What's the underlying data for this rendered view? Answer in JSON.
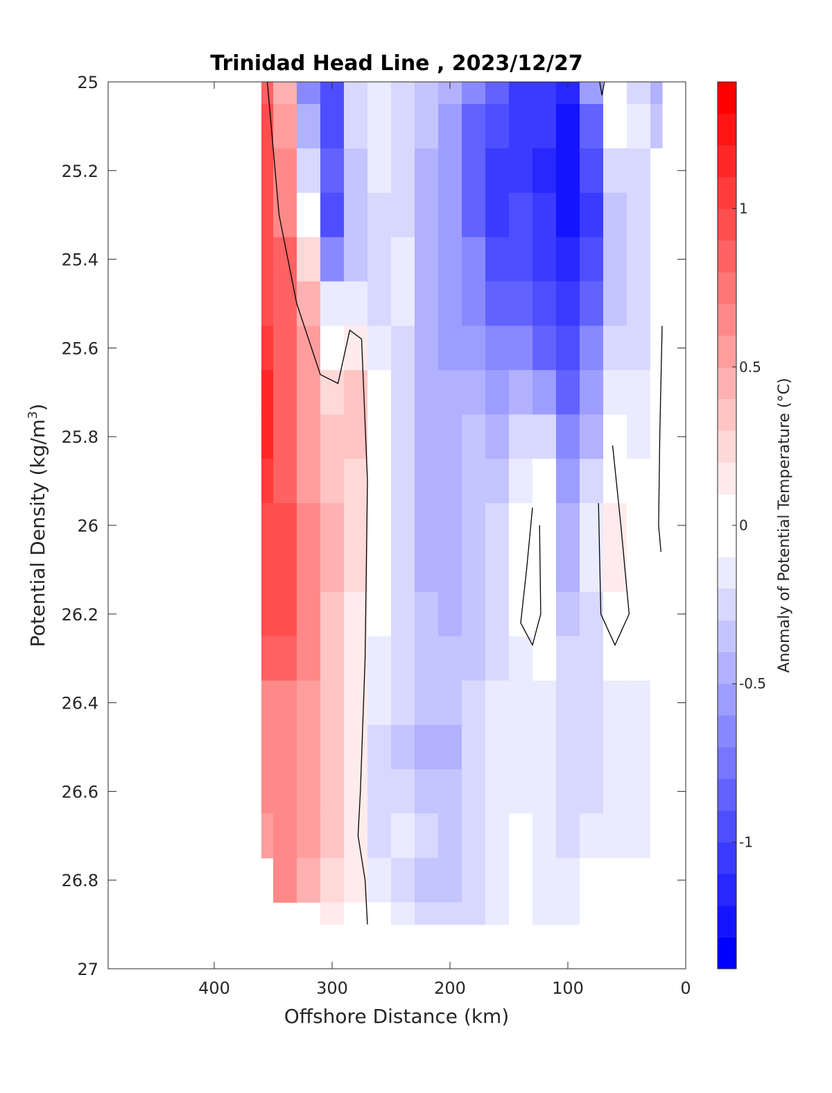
{
  "chart_data": {
    "type": "heatmap",
    "title": "Trinidad Head Line , 2023/12/27",
    "xlabel": "Offshore Distance (km)",
    "ylabel_prefix": "Potential Density (kg/m",
    "ylabel_exponent": "3",
    "ylabel_suffix": ")",
    "colorbar_label": "Anomaly of Potential Temperature (°C)",
    "xlim": [
      490,
      0
    ],
    "ylim": [
      25,
      27
    ],
    "y_reversed": true,
    "grid": false,
    "xticks": [
      400,
      300,
      200,
      100,
      0
    ],
    "xtick_labels": [
      "400",
      "300",
      "200",
      "100",
      "0"
    ],
    "yticks": [
      25,
      25.2,
      25.4,
      25.6,
      25.8,
      26,
      26.2,
      26.4,
      26.6,
      26.8,
      27
    ],
    "ytick_labels": [
      "25",
      "25.2",
      "25.4",
      "25.6",
      "25.8",
      "26",
      "26.2",
      "26.4",
      "26.6",
      "26.8",
      "27"
    ],
    "clim": [
      -1.4,
      1.4
    ],
    "colorbar_levels": 28,
    "colorbar_ticks": [
      1,
      0.5,
      0,
      -0.5,
      -1
    ],
    "colorbar_tick_labels": [
      "1",
      "0.5",
      "0",
      "-0.5",
      "-1"
    ],
    "colormap": {
      "negative": "#0000ff",
      "zero": "#ffffff",
      "positive": "#ff0000"
    },
    "x": [
      360,
      340,
      320,
      300,
      280,
      260,
      240,
      220,
      200,
      180,
      160,
      140,
      120,
      100,
      80,
      60,
      40,
      20
    ],
    "y": [
      25,
      25.1,
      25.2,
      25.3,
      25.4,
      25.5,
      25.6,
      25.7,
      25.8,
      25.9,
      26,
      26.1,
      26.2,
      26.3,
      26.4,
      26.5,
      26.6,
      26.7,
      26.8,
      26.9
    ],
    "anomaly": [
      [
        0.8,
        0.4,
        -0.7,
        -0.9,
        -0.3,
        -0.2,
        -0.3,
        -0.4,
        -0.5,
        -0.7,
        -0.8,
        -1.0,
        -1.0,
        -1.1,
        -0.6,
        0.0,
        -0.3,
        -0.5
      ],
      [
        0.9,
        0.5,
        -0.5,
        -0.9,
        -0.3,
        -0.2,
        -0.3,
        -0.4,
        -0.6,
        -0.8,
        -0.9,
        -1.0,
        -1.0,
        -1.2,
        -0.8,
        -0.1,
        -0.2,
        -0.4
      ],
      [
        0.9,
        0.6,
        -0.3,
        -0.8,
        -0.4,
        -0.2,
        -0.3,
        -0.5,
        -0.6,
        -0.8,
        -1.0,
        -1.0,
        -1.1,
        -1.2,
        -0.9,
        -0.3,
        -0.3,
        -0.1
      ],
      [
        0.9,
        0.7,
        -0.1,
        -0.9,
        -0.4,
        -0.3,
        -0.3,
        -0.5,
        -0.6,
        -0.8,
        -1.0,
        -0.9,
        -1.0,
        -1.2,
        -1.0,
        -0.4,
        -0.3,
        -0.1
      ],
      [
        0.9,
        0.8,
        0.2,
        -0.7,
        -0.4,
        -0.3,
        -0.2,
        -0.5,
        -0.6,
        -0.7,
        -0.9,
        -0.9,
        -1.0,
        -1.1,
        -0.9,
        -0.4,
        -0.3,
        -0.1
      ],
      [
        0.9,
        0.8,
        0.4,
        -0.2,
        -0.2,
        -0.3,
        -0.2,
        -0.5,
        -0.6,
        -0.7,
        -0.8,
        -0.8,
        -0.9,
        -1.0,
        -0.8,
        -0.4,
        -0.3,
        -0.1
      ],
      [
        1.0,
        0.8,
        0.5,
        0.0,
        0.1,
        -0.2,
        -0.3,
        -0.5,
        -0.6,
        -0.6,
        -0.7,
        -0.7,
        -0.8,
        -0.9,
        -0.7,
        -0.3,
        -0.3,
        -0.1
      ],
      [
        1.1,
        0.8,
        0.5,
        0.2,
        0.3,
        -0.1,
        -0.3,
        -0.5,
        -0.5,
        -0.5,
        -0.6,
        -0.5,
        -0.6,
        -0.8,
        -0.6,
        -0.2,
        -0.2,
        -0.1
      ],
      [
        1.1,
        0.8,
        0.5,
        0.3,
        0.3,
        -0.1,
        -0.3,
        -0.5,
        -0.5,
        -0.4,
        -0.5,
        -0.3,
        -0.3,
        -0.7,
        -0.5,
        0.0,
        -0.2,
        0.0
      ],
      [
        1.0,
        0.8,
        0.5,
        0.3,
        0.2,
        -0.1,
        -0.3,
        -0.5,
        -0.5,
        -0.4,
        -0.4,
        -0.2,
        0.0,
        -0.6,
        -0.3,
        0.05,
        -0.1,
        0.0
      ],
      [
        0.9,
        0.9,
        0.6,
        0.4,
        0.2,
        -0.1,
        -0.3,
        -0.5,
        -0.5,
        -0.4,
        -0.3,
        -0.1,
        0.05,
        -0.5,
        -0.2,
        0.1,
        0.0,
        0.0
      ],
      [
        0.9,
        0.9,
        0.6,
        0.4,
        0.2,
        -0.1,
        -0.3,
        -0.5,
        -0.5,
        -0.4,
        -0.3,
        -0.1,
        0.05,
        -0.5,
        -0.2,
        0.1,
        0.0,
        -0.1
      ],
      [
        0.9,
        0.9,
        0.6,
        0.3,
        0.1,
        -0.1,
        -0.3,
        -0.4,
        -0.5,
        -0.4,
        -0.3,
        -0.1,
        0.0,
        -0.4,
        -0.3,
        0.05,
        -0.1,
        -0.1
      ],
      [
        0.8,
        0.8,
        0.6,
        0.3,
        0.1,
        -0.2,
        -0.3,
        -0.4,
        -0.4,
        -0.4,
        -0.3,
        -0.2,
        -0.1,
        -0.3,
        -0.3,
        -0.1,
        -0.1,
        -0.1
      ],
      [
        0.7,
        0.7,
        0.5,
        0.3,
        0.1,
        -0.2,
        -0.3,
        -0.4,
        -0.4,
        -0.3,
        -0.2,
        -0.2,
        -0.2,
        -0.3,
        -0.3,
        -0.2,
        -0.2,
        -0.1
      ],
      [
        0.7,
        0.7,
        0.5,
        0.3,
        0.1,
        -0.3,
        -0.4,
        -0.5,
        -0.5,
        -0.3,
        -0.2,
        -0.2,
        -0.2,
        -0.3,
        -0.3,
        -0.2,
        -0.2,
        -0.1
      ],
      [
        0.6,
        0.7,
        0.5,
        0.3,
        0.1,
        -0.3,
        -0.3,
        -0.4,
        -0.4,
        -0.3,
        -0.2,
        -0.2,
        -0.2,
        -0.3,
        -0.3,
        -0.2,
        -0.2,
        -0.1
      ],
      [
        0.5,
        0.7,
        0.5,
        0.3,
        0.1,
        -0.3,
        -0.2,
        -0.3,
        -0.4,
        -0.3,
        -0.2,
        -0.1,
        -0.2,
        -0.3,
        -0.2,
        -0.2,
        -0.2,
        -0.1
      ],
      [
        null,
        0.6,
        0.4,
        0.2,
        0.1,
        -0.2,
        -0.3,
        -0.4,
        -0.4,
        -0.3,
        -0.2,
        -0.1,
        -0.2,
        -0.2,
        -0.1,
        -0.1,
        -0.1,
        null
      ],
      [
        null,
        null,
        null,
        0.1,
        0.05,
        -0.1,
        -0.2,
        -0.3,
        -0.3,
        -0.3,
        -0.2,
        -0.1,
        -0.2,
        -0.2,
        -0.1,
        -0.1,
        null,
        null
      ]
    ],
    "zero_contours": [
      [
        [
          355,
          25
        ],
        [
          345,
          25.3
        ],
        [
          330,
          25.5
        ],
        [
          310,
          25.66
        ],
        [
          295,
          25.68
        ],
        [
          285,
          25.56
        ],
        [
          275,
          25.58
        ],
        [
          270,
          25.9
        ],
        [
          272,
          26.3
        ],
        [
          276,
          26.6
        ],
        [
          278,
          26.7
        ],
        [
          272,
          26.8
        ],
        [
          270,
          26.9
        ]
      ],
      [
        [
          130,
          25.96
        ],
        [
          135,
          26.1
        ],
        [
          140,
          26.22
        ],
        [
          130,
          26.27
        ],
        [
          123,
          26.2
        ],
        [
          124,
          26.0
        ]
      ],
      [
        [
          62,
          25.82
        ],
        [
          55,
          26.0
        ],
        [
          48,
          26.2
        ],
        [
          60,
          26.27
        ],
        [
          72,
          26.2
        ],
        [
          74,
          25.95
        ]
      ],
      [
        [
          69,
          25
        ],
        [
          71,
          25.03
        ],
        [
          73,
          25
        ]
      ],
      [
        [
          20,
          25.55
        ],
        [
          22,
          25.8
        ],
        [
          23,
          26.0
        ],
        [
          21,
          26.06
        ]
      ]
    ]
  }
}
